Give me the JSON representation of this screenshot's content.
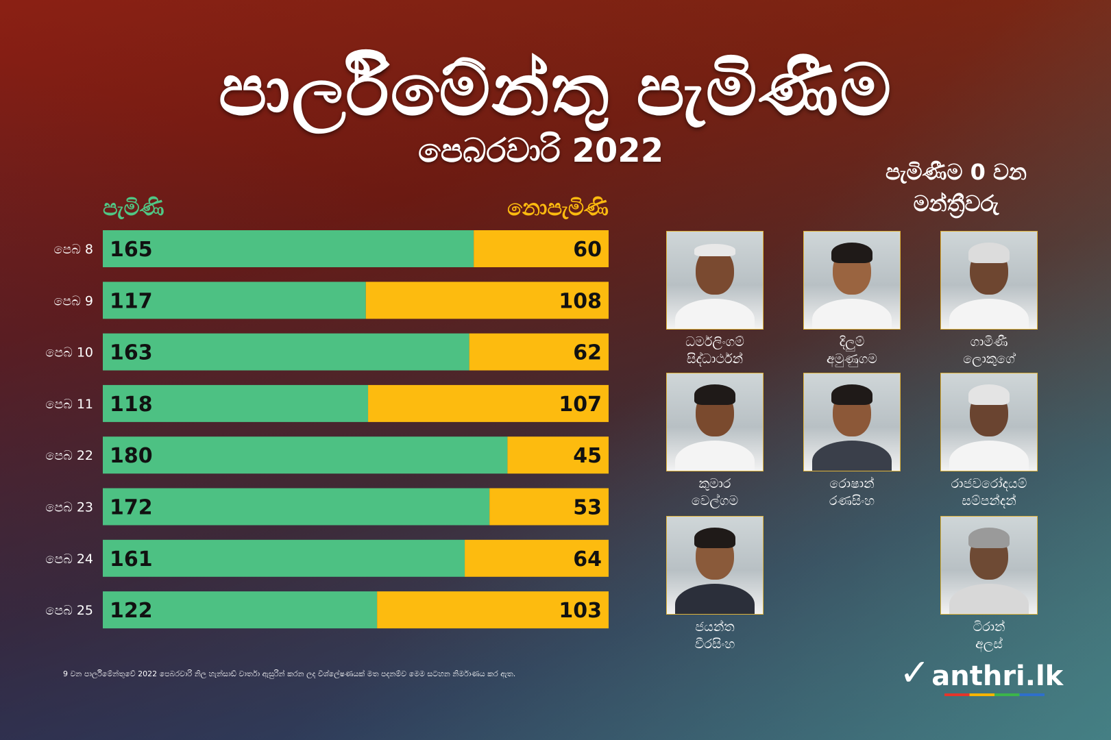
{
  "title": "පාර්ලිමේන්තු පැමිණීම",
  "subtitle": "පෙබරවාරි 2022",
  "chart_data": {
    "type": "bar",
    "orientation": "horizontal",
    "stacked": true,
    "categories": [
      "පෙබ 8",
      "පෙබ 9",
      "පෙබ 10",
      "පෙබ 11",
      "පෙබ 22",
      "පෙබ 23",
      "පෙබ 24",
      "පෙබ 25"
    ],
    "series": [
      {
        "name": "පැමිණි",
        "color": "#4dc183",
        "values": [
          165,
          117,
          163,
          118,
          180,
          172,
          161,
          122
        ]
      },
      {
        "name": "නොපැමිණි",
        "color": "#fdbb0f",
        "values": [
          60,
          108,
          62,
          107,
          45,
          53,
          64,
          103
        ]
      }
    ],
    "xlim": [
      0,
      225
    ]
  },
  "panel": {
    "title_line1": "පැමිණීම 0 වන",
    "title_line2": "මන්ත්‍රීවරු",
    "members": [
      {
        "name1": "ධර්මලිංගම්",
        "name2": "සිද්ධාර්ථන්"
      },
      {
        "name1": "දිලුම්",
        "name2": "අමුණුගම"
      },
      {
        "name1": "ගාමිණී",
        "name2": "ලොකුගේ"
      },
      {
        "name1": "කුමාර",
        "name2": "වෙල්ගම"
      },
      {
        "name1": "රොෂාන්",
        "name2": "රණසිංහ"
      },
      {
        "name1": "රාජවරෝදයම්",
        "name2": "සම්පන්දන්"
      },
      {
        "name1": "ජයන්ත",
        "name2": "වීරසිංහ"
      },
      {
        "name1": "ටිරාන්",
        "name2": "අලස්"
      }
    ]
  },
  "footnote": "9 වන පාර්ලිමේන්තුවේ 2022 පෙබරවාරි නිල හැන්සාඩ් වාර්තා ඇසුරින් කරන ලද විශ්ලේෂණයක් මත පදනම්ව මෙම සටහන නිර්මාණය කර ඇත.",
  "logo": {
    "tick": "✓",
    "text": "anthri.lk"
  }
}
